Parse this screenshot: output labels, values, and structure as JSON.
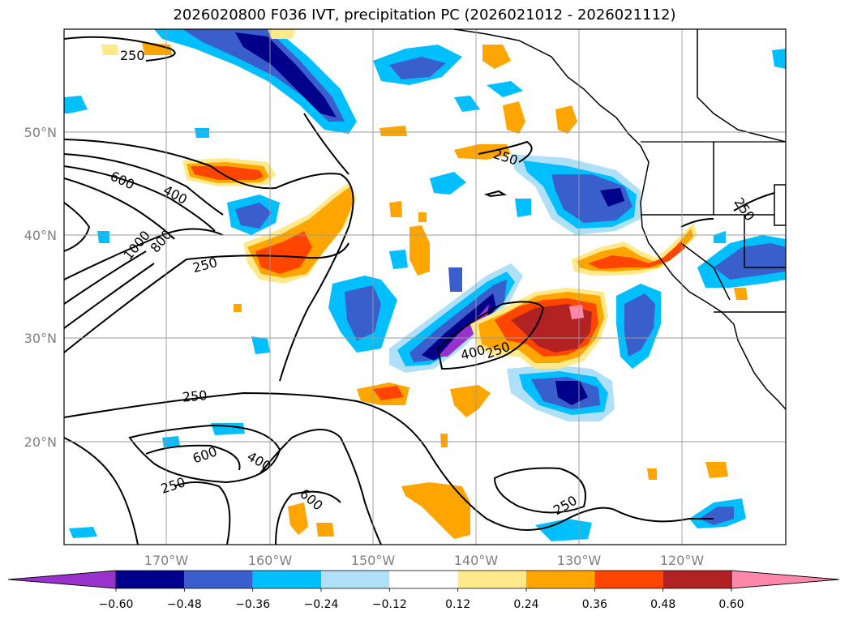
{
  "title": "2026020800 F036 IVT, precipitation PC (2026021012 - 2026021112)",
  "lat_labels": [
    "50°N",
    "40°N",
    "30°N",
    "20°N"
  ],
  "lon_labels": [
    "170°W",
    "160°W",
    "150°W",
    "140°W",
    "130°W",
    "120°W"
  ],
  "colorbar": {
    "ticks": [
      "−0.60",
      "−0.48",
      "−0.36",
      "−0.24",
      "−0.12",
      "0.12",
      "0.24",
      "0.36",
      "0.48",
      "0.60"
    ],
    "colors": [
      "#9932cc",
      "#00008b",
      "#3a5fcd",
      "#00bfff",
      "#b0e0f8",
      "#ffffff",
      "#ffe98a",
      "#ffa500",
      "#ff4500",
      "#b22222",
      "#ff88aa"
    ]
  },
  "contour_labels": [
    "250",
    "600",
    "400",
    "1000",
    "800",
    "250",
    "250",
    "250",
    "400",
    "250",
    "250",
    "600",
    "400",
    "250",
    "600",
    "250"
  ]
}
